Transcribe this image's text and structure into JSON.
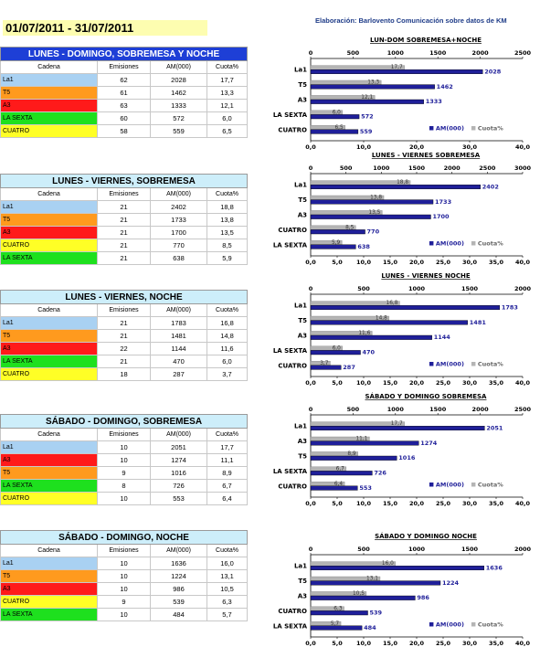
{
  "header": {
    "date_range": "01/07/2011 - 31/07/2011",
    "credit": "Elaboración: Barlovento Comunicación sobre datos de KM"
  },
  "tables": [
    {
      "title": "LUNES - DOMINGO, SOBREMESA Y NOCHE",
      "title_bg": "#1e3fd6",
      "title_color": "#ffffff",
      "columns": [
        "Cadena",
        "Emisiones",
        "AM(000)",
        "Cuota%"
      ],
      "rows": [
        {
          "channel": "La1",
          "emisiones": "62",
          "am": "2028",
          "cuota": "17,7",
          "color": "#a9d1f2"
        },
        {
          "channel": "T5",
          "emisiones": "61",
          "am": "1462",
          "cuota": "13,3",
          "color": "#ff9a1e"
        },
        {
          "channel": "A3",
          "emisiones": "63",
          "am": "1333",
          "cuota": "12,1",
          "color": "#ff1a1a"
        },
        {
          "channel": "LA SEXTA",
          "emisiones": "60",
          "am": "572",
          "cuota": "6,0",
          "color": "#1ee01e"
        },
        {
          "channel": "CUATRO",
          "emisiones": "58",
          "am": "559",
          "cuota": "6,5",
          "color": "#ffff26"
        }
      ]
    },
    {
      "title": "LUNES - VIERNES, SOBREMESA",
      "title_bg": "#cdeefa",
      "title_color": "#000000",
      "columns": [
        "Cadena",
        "Emisiones",
        "AM(000)",
        "Cuota%"
      ],
      "rows": [
        {
          "channel": "La1",
          "emisiones": "21",
          "am": "2402",
          "cuota": "18,8",
          "color": "#a9d1f2"
        },
        {
          "channel": "T5",
          "emisiones": "21",
          "am": "1733",
          "cuota": "13,8",
          "color": "#ff9a1e"
        },
        {
          "channel": "A3",
          "emisiones": "21",
          "am": "1700",
          "cuota": "13,5",
          "color": "#ff1a1a"
        },
        {
          "channel": "CUATRO",
          "emisiones": "21",
          "am": "770",
          "cuota": "8,5",
          "color": "#ffff26"
        },
        {
          "channel": "LA SEXTA",
          "emisiones": "21",
          "am": "638",
          "cuota": "5,9",
          "color": "#1ee01e"
        }
      ]
    },
    {
      "title": "LUNES - VIERNES, NOCHE",
      "title_bg": "#cdeefa",
      "title_color": "#000000",
      "columns": [
        "Cadena",
        "Emisiones",
        "AM(000)",
        "Cuota%"
      ],
      "rows": [
        {
          "channel": "La1",
          "emisiones": "21",
          "am": "1783",
          "cuota": "16,8",
          "color": "#a9d1f2"
        },
        {
          "channel": "T5",
          "emisiones": "21",
          "am": "1481",
          "cuota": "14,8",
          "color": "#ff9a1e"
        },
        {
          "channel": "A3",
          "emisiones": "22",
          "am": "1144",
          "cuota": "11,6",
          "color": "#ff1a1a"
        },
        {
          "channel": "LA SEXTA",
          "emisiones": "21",
          "am": "470",
          "cuota": "6,0",
          "color": "#1ee01e"
        },
        {
          "channel": "CUATRO",
          "emisiones": "18",
          "am": "287",
          "cuota": "3,7",
          "color": "#ffff26"
        }
      ]
    },
    {
      "title": "SÁBADO - DOMINGO, SOBREMESA",
      "title_bg": "#cdeefa",
      "title_color": "#000000",
      "columns": [
        "Cadena",
        "Emisiones",
        "AM(000)",
        "Cuota%"
      ],
      "rows": [
        {
          "channel": "La1",
          "emisiones": "10",
          "am": "2051",
          "cuota": "17,7",
          "color": "#a9d1f2"
        },
        {
          "channel": "A3",
          "emisiones": "10",
          "am": "1274",
          "cuota": "11,1",
          "color": "#ff1a1a"
        },
        {
          "channel": "T5",
          "emisiones": "9",
          "am": "1016",
          "cuota": "8,9",
          "color": "#ff9a1e"
        },
        {
          "channel": "LA SEXTA",
          "emisiones": "8",
          "am": "726",
          "cuota": "6,7",
          "color": "#1ee01e"
        },
        {
          "channel": "CUATRO",
          "emisiones": "10",
          "am": "553",
          "cuota": "6,4",
          "color": "#ffff26"
        }
      ]
    },
    {
      "title": "SÁBADO - DOMINGO, NOCHE",
      "title_bg": "#cdeefa",
      "title_color": "#000000",
      "columns": [
        "Cadena",
        "Emisiones",
        "AM(000)",
        "Cuota%"
      ],
      "rows": [
        {
          "channel": "La1",
          "emisiones": "10",
          "am": "1636",
          "cuota": "16,0",
          "color": "#a9d1f2"
        },
        {
          "channel": "T5",
          "emisiones": "10",
          "am": "1224",
          "cuota": "13,1",
          "color": "#ff9a1e"
        },
        {
          "channel": "A3",
          "emisiones": "10",
          "am": "986",
          "cuota": "10,5",
          "color": "#ff1a1a"
        },
        {
          "channel": "CUATRO",
          "emisiones": "9",
          "am": "539",
          "cuota": "6,3",
          "color": "#ffff26"
        },
        {
          "channel": "LA SEXTA",
          "emisiones": "10",
          "am": "484",
          "cuota": "5,7",
          "color": "#1ee01e"
        }
      ]
    }
  ],
  "chart_data": [
    {
      "type": "bar",
      "orientation": "horizontal",
      "title": "LUN-DOM SOBREMESA+NOCHE",
      "categories": [
        "La1",
        "T5",
        "A3",
        "LA SEXTA",
        "CUATRO"
      ],
      "series": [
        {
          "name": "AM(000)",
          "axis": "top",
          "values": [
            2028,
            1462,
            1333,
            572,
            559
          ],
          "labels": [
            "2028",
            "1462",
            "1333",
            "572",
            "559"
          ],
          "color": "#1f1f99"
        },
        {
          "name": "Cuota%",
          "axis": "bottom",
          "values": [
            17.7,
            13.3,
            12.1,
            6.0,
            6.5
          ],
          "labels": [
            "17,7",
            "13,3",
            "12,1",
            "6,0",
            "6,5"
          ],
          "color": "#b4b4b4"
        }
      ],
      "top_axis": {
        "min": 0,
        "max": 2500,
        "ticks": [
          "0",
          "500",
          "1000",
          "1500",
          "2000",
          "2500"
        ]
      },
      "bottom_axis": {
        "min": 0,
        "max": 40,
        "ticks": [
          "0,0",
          "10,0",
          "20,0",
          "30,0",
          "40,0"
        ]
      },
      "legend": "bottom-right"
    },
    {
      "type": "bar",
      "orientation": "horizontal",
      "title": "LUNES - VIERNES SOBREMESA",
      "categories": [
        "La1",
        "T5",
        "A3",
        "CUATRO",
        "LA SEXTA"
      ],
      "series": [
        {
          "name": "AM(000)",
          "axis": "top",
          "values": [
            2402,
            1733,
            1700,
            770,
            638
          ],
          "labels": [
            "2402",
            "1733",
            "1700",
            "770",
            "638"
          ],
          "color": "#1f1f99"
        },
        {
          "name": "Cuota%",
          "axis": "bottom",
          "values": [
            18.8,
            13.8,
            13.5,
            8.5,
            5.9
          ],
          "labels": [
            "18,8",
            "13,8",
            "13,5",
            "8,5",
            "5,9"
          ],
          "color": "#b4b4b4"
        }
      ],
      "top_axis": {
        "min": 0,
        "max": 3000,
        "ticks": [
          "0",
          "500",
          "1000",
          "1500",
          "2000",
          "2500",
          "3000"
        ]
      },
      "bottom_axis": {
        "min": 0,
        "max": 40,
        "ticks": [
          "0,0",
          "5,0",
          "10,0",
          "15,0",
          "20,0",
          "25,0",
          "30,0",
          "35,0",
          "40,0"
        ]
      },
      "legend": "bottom-right"
    },
    {
      "type": "bar",
      "orientation": "horizontal",
      "title": "LUNES - VIERNES NOCHE",
      "categories": [
        "La1",
        "T5",
        "A3",
        "LA SEXTA",
        "CUATRO"
      ],
      "series": [
        {
          "name": "AM(000)",
          "axis": "top",
          "values": [
            1783,
            1481,
            1144,
            470,
            287
          ],
          "labels": [
            "1783",
            "1481",
            "1144",
            "470",
            "287"
          ],
          "color": "#1f1f99"
        },
        {
          "name": "Cuota%",
          "axis": "bottom",
          "values": [
            16.8,
            14.8,
            11.6,
            6.0,
            3.7
          ],
          "labels": [
            "16,8",
            "14,8",
            "11,6",
            "6,0",
            "3,7"
          ],
          "color": "#b4b4b4"
        }
      ],
      "top_axis": {
        "min": 0,
        "max": 2000,
        "ticks": [
          "0",
          "500",
          "1000",
          "1500",
          "2000"
        ]
      },
      "bottom_axis": {
        "min": 0,
        "max": 40,
        "ticks": [
          "0,0",
          "5,0",
          "10,0",
          "15,0",
          "20,0",
          "25,0",
          "30,0",
          "35,0",
          "40,0"
        ]
      },
      "legend": "bottom-right"
    },
    {
      "type": "bar",
      "orientation": "horizontal",
      "title": "SÁBADO Y DOMINGO SOBREMESA",
      "categories": [
        "La1",
        "A3",
        "T5",
        "LA SEXTA",
        "CUATRO"
      ],
      "series": [
        {
          "name": "AM(000)",
          "axis": "top",
          "values": [
            2051,
            1274,
            1016,
            726,
            553
          ],
          "labels": [
            "2051",
            "1274",
            "1016",
            "726",
            "553"
          ],
          "color": "#1f1f99"
        },
        {
          "name": "Cuota%",
          "axis": "bottom",
          "values": [
            17.7,
            11.1,
            8.9,
            6.7,
            6.4
          ],
          "labels": [
            "17,7",
            "11,1",
            "8,9",
            "6,7",
            "6,4"
          ],
          "color": "#b4b4b4"
        }
      ],
      "top_axis": {
        "min": 0,
        "max": 2500,
        "ticks": [
          "0",
          "500",
          "1000",
          "1500",
          "2000",
          "2500"
        ]
      },
      "bottom_axis": {
        "min": 0,
        "max": 40,
        "ticks": [
          "0,0",
          "5,0",
          "10,0",
          "15,0",
          "20,0",
          "25,0",
          "30,0",
          "35,0",
          "40,0"
        ]
      },
      "legend": "bottom-right"
    },
    {
      "type": "bar",
      "orientation": "horizontal",
      "title": "SÁBADO Y DOMINGO NOCHE",
      "categories": [
        "La1",
        "T5",
        "A3",
        "CUATRO",
        "LA SEXTA"
      ],
      "series": [
        {
          "name": "AM(000)",
          "axis": "top",
          "values": [
            1636,
            1224,
            986,
            539,
            484
          ],
          "labels": [
            "1636",
            "1224",
            "986",
            "539",
            "484"
          ],
          "color": "#1f1f99"
        },
        {
          "name": "Cuota%",
          "axis": "bottom",
          "values": [
            16.0,
            13.1,
            10.5,
            6.3,
            5.7
          ],
          "labels": [
            "16,0",
            "13,1",
            "10,5",
            "6,3",
            "5,7"
          ],
          "color": "#b4b4b4"
        }
      ],
      "top_axis": {
        "min": 0,
        "max": 2000,
        "ticks": [
          "0",
          "500",
          "1000",
          "1500",
          "2000"
        ]
      },
      "bottom_axis": {
        "min": 0,
        "max": 40,
        "ticks": [
          "0,0",
          "5,0",
          "10,0",
          "15,0",
          "20,0",
          "25,0",
          "30,0",
          "35,0",
          "40,0"
        ]
      },
      "legend": "bottom-right"
    }
  ]
}
